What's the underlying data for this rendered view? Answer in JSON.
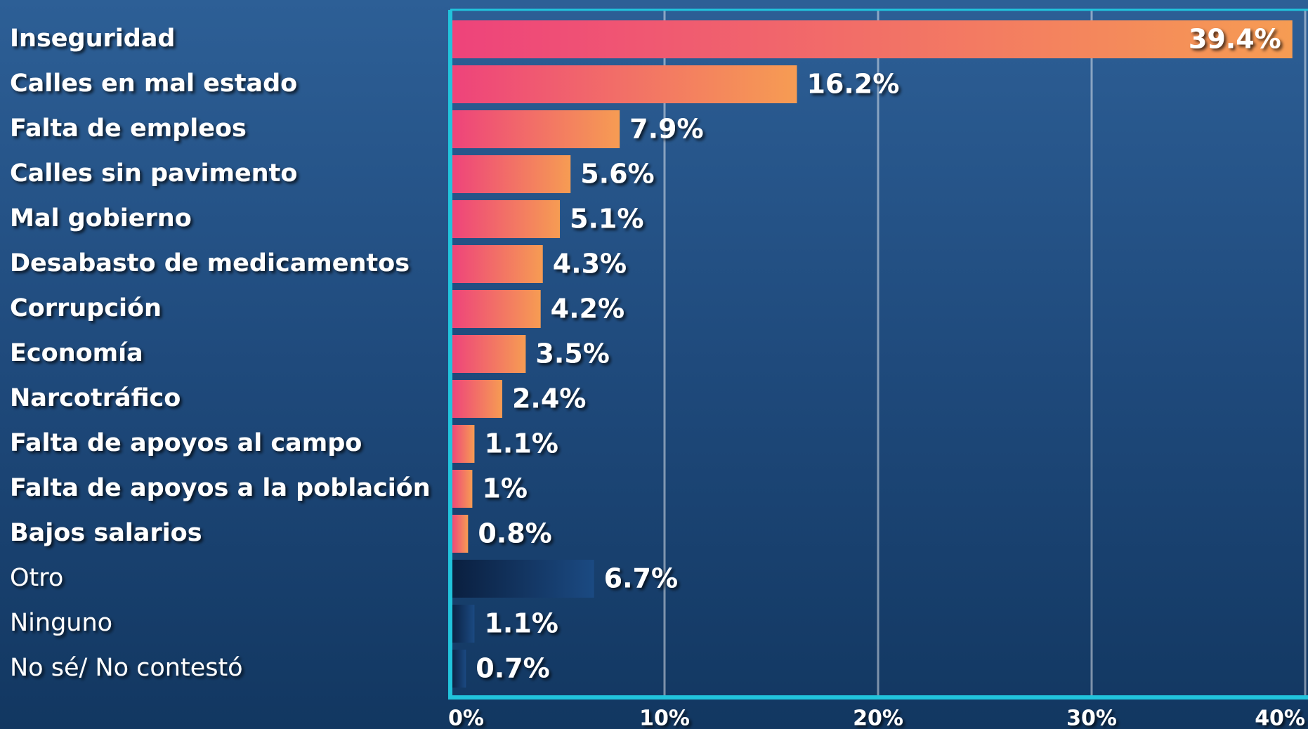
{
  "chart_data": {
    "type": "barh",
    "categories": [
      "Inseguridad",
      "Calles en mal estado",
      "Falta de empleos",
      "Calles sin pavimento",
      "Mal gobierno",
      "Desabasto de medicamentos",
      "Corrupción",
      "Economía",
      "Narcotráfico",
      "Falta de apoyos al campo",
      "Falta de apoyos a la población",
      "Bajos salarios",
      "Otro",
      "Ninguno",
      "No sé/ No contestó"
    ],
    "values": [
      39.4,
      16.2,
      7.9,
      5.6,
      5.1,
      4.3,
      4.2,
      3.5,
      2.4,
      1.1,
      1,
      0.8,
      6.7,
      1.1,
      0.7
    ],
    "value_labels": [
      "39.4%",
      "16.2%",
      "7.9%",
      "5.6%",
      "5.1%",
      "4.3%",
      "4.2%",
      "3.5%",
      "2.4%",
      "1.1%",
      "1%",
      "0.8%",
      "6.7%",
      "1.1%",
      "0.7%"
    ],
    "colors": [
      [
        "#ee437b",
        "#f69c53"
      ],
      [
        "#ee437b",
        "#f69c53"
      ],
      [
        "#ee437b",
        "#f69c53"
      ],
      [
        "#ee437b",
        "#f69c53"
      ],
      [
        "#ee437b",
        "#f69c53"
      ],
      [
        "#ee437b",
        "#f69c53"
      ],
      [
        "#ee437b",
        "#f69c53"
      ],
      [
        "#ee437b",
        "#f69c53"
      ],
      [
        "#ee437b",
        "#f69c53"
      ],
      [
        "#ee437b",
        "#f69c53"
      ],
      [
        "#ee437b",
        "#f69c53"
      ],
      [
        "#ee437b",
        "#f69c53"
      ],
      [
        "#0a1f3f",
        "#1b4a82"
      ],
      [
        "#0a1f3f",
        "#1b4a82"
      ],
      [
        "#0a1f3f",
        "#1b4a82"
      ]
    ],
    "xlim": [
      0,
      40
    ],
    "xticks": [
      {
        "value": 0,
        "label": "0%"
      },
      {
        "value": 10,
        "label": "10%"
      },
      {
        "value": 20,
        "label": "20%"
      },
      {
        "value": 30,
        "label": "30%"
      },
      {
        "value": 40,
        "label": "40%"
      }
    ],
    "grid": true
  }
}
